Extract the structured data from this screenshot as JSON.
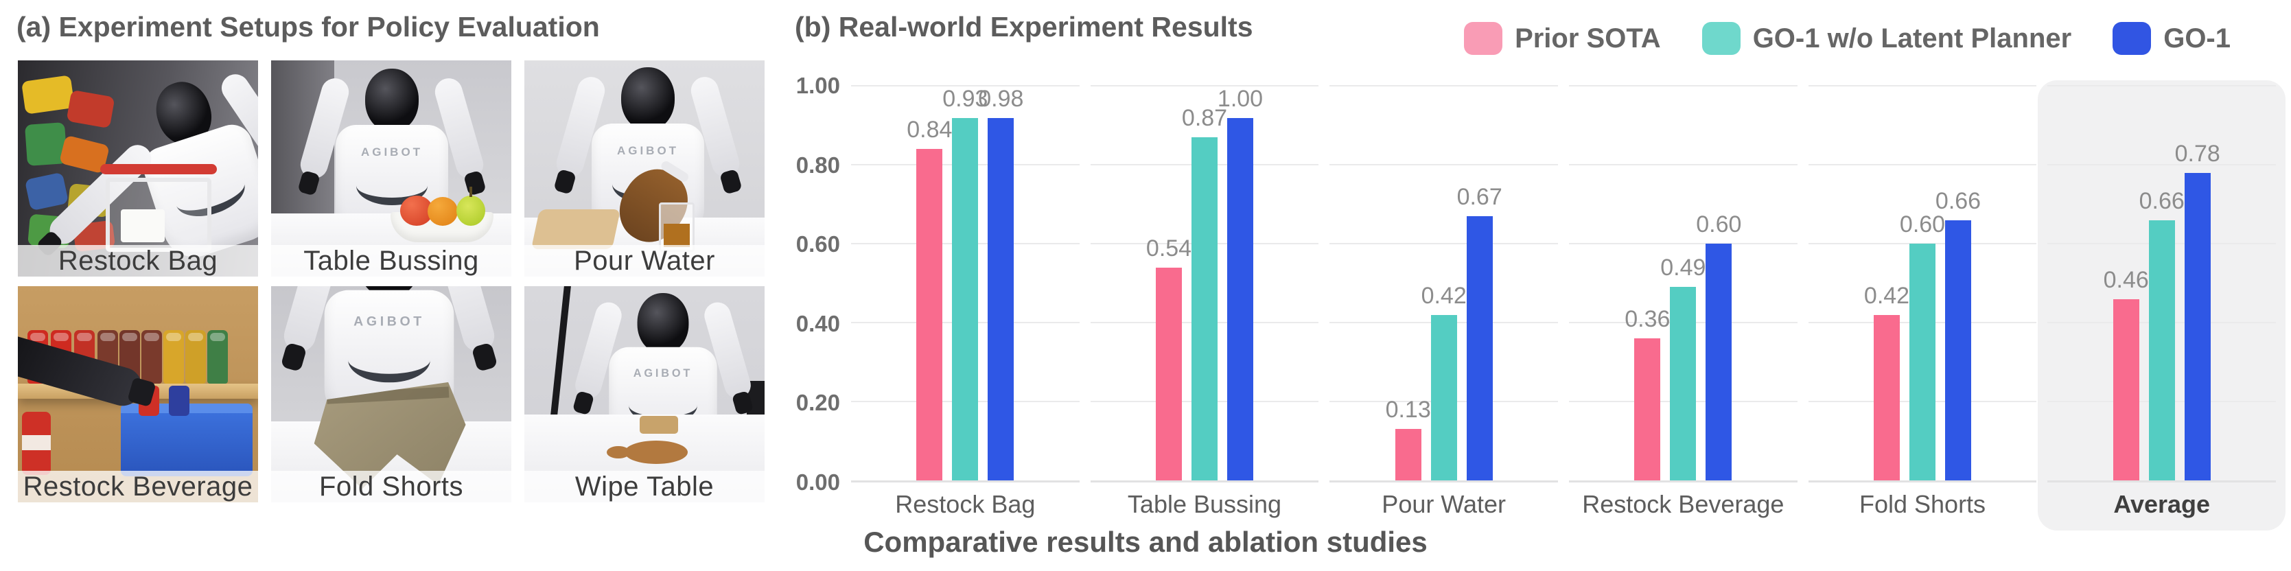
{
  "panel_a": {
    "title": "(a) Experiment Setups for Policy Evaluation",
    "robot_brand": "AGIBOT",
    "tiles": [
      {
        "label": "Restock Bag"
      },
      {
        "label": "Table Bussing"
      },
      {
        "label": "Pour Water"
      },
      {
        "label": "Restock Beverage"
      },
      {
        "label": "Fold Shorts"
      },
      {
        "label": "Wipe Table"
      }
    ]
  },
  "panel_b": {
    "title": "(b) Real-world Experiment Results",
    "caption": "Comparative results and ablation studies"
  },
  "chart_data": {
    "type": "bar",
    "title": "(b) Real-world Experiment Results",
    "categories": [
      "Restock Bag",
      "Table Bussing",
      "Pour Water",
      "Restock Beverage",
      "Fold Shorts",
      "Average"
    ],
    "series": [
      {
        "name": "Prior SOTA",
        "color": "#F96B8E",
        "values": [
          0.84,
          0.54,
          0.13,
          0.36,
          0.42,
          0.46
        ]
      },
      {
        "name": "GO-1 w/o Latent Planner",
        "color": "#54CDC2",
        "values": [
          0.93,
          0.87,
          0.42,
          0.49,
          0.6,
          0.66
        ]
      },
      {
        "name": "GO-1",
        "color": "#2F57E5",
        "values": [
          0.98,
          1.0,
          0.67,
          0.6,
          0.66,
          0.78
        ]
      }
    ],
    "legend_colors": [
      "#F99CB5",
      "#6FD8CC",
      "#3155E3"
    ],
    "ylim": [
      0,
      1
    ],
    "yticks": [
      "0.00",
      "0.20",
      "0.40",
      "0.60",
      "0.80",
      "1.00"
    ],
    "grid": true,
    "legend_position": "top-right",
    "highlight": {
      "category": "Average",
      "color": "#F1F1F2"
    },
    "xlabel": "",
    "ylabel": ""
  }
}
